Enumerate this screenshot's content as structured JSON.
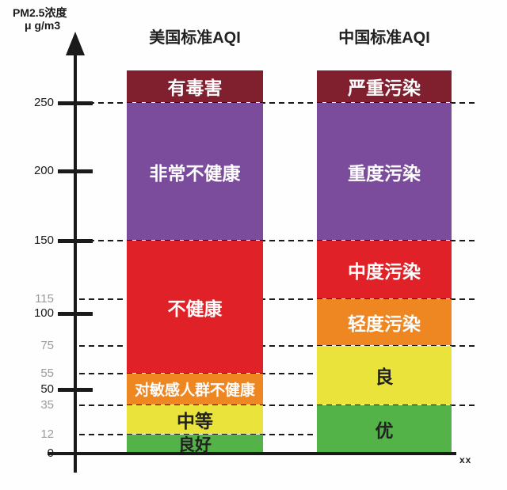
{
  "header": {
    "pm_line1": "PM2.5浓度",
    "pm_line2": "μ g/m3"
  },
  "x_label": "xx",
  "colors": {
    "maroon": "#801f2e",
    "purple": "#7b4b9c",
    "red": "#e02127",
    "orange": "#ee8722",
    "yellow": "#e9e33c",
    "green": "#53b348",
    "axis": "#1a1a1a",
    "gray_label": "#9b9b9b",
    "text_light": "#fdfdfd",
    "text_dark": "#222222"
  },
  "chart_data": {
    "type": "bar",
    "subtype": "stacked-threshold-comparison",
    "ylabel": "PM2.5浓度 μ g/m3",
    "ylim": [
      0,
      275
    ],
    "grid": "dashed threshold lines at 12, 35, 55, 75, 115, 150, 250",
    "legend_position": "none",
    "yticks": [
      {
        "value": 250,
        "tick": true,
        "dashed": true
      },
      {
        "value": 200,
        "tick": true,
        "dashed": false
      },
      {
        "value": 150,
        "tick": true,
        "dashed": true
      },
      {
        "value": 115,
        "tick": false,
        "dashed": true
      },
      {
        "value": 100,
        "tick": true,
        "dashed": false
      },
      {
        "value": 75,
        "tick": false,
        "dashed": true
      },
      {
        "value": 55,
        "tick": false,
        "dashed": true
      },
      {
        "value": 50,
        "tick": true,
        "dashed": false
      },
      {
        "value": 35,
        "tick": false,
        "dashed": true
      },
      {
        "value": 12,
        "tick": false,
        "dashed": true
      },
      {
        "value": 0,
        "tick": false,
        "dashed": false
      }
    ],
    "series": [
      {
        "id": "us",
        "name": "美国标准AQI",
        "segments": [
          {
            "label": "良好",
            "from": 0,
            "to": 12,
            "color": "green",
            "text": "dark"
          },
          {
            "label": "中等",
            "from": 12,
            "to": 35,
            "color": "yellow",
            "text": "dark"
          },
          {
            "label": "对敏感人群不健康",
            "from": 35,
            "to": 55,
            "color": "orange",
            "text": "light"
          },
          {
            "label": "不健康",
            "from": 55,
            "to": 150,
            "color": "red",
            "text": "light"
          },
          {
            "label": "非常不健康",
            "from": 150,
            "to": 250,
            "color": "purple",
            "text": "light"
          },
          {
            "label": "有毒害",
            "from": 250,
            "to": null,
            "color": "maroon",
            "text": "light"
          }
        ]
      },
      {
        "id": "china",
        "name": "中国标准AQI",
        "segments": [
          {
            "label": "优",
            "from": 0,
            "to": 35,
            "color": "green",
            "text": "dark"
          },
          {
            "label": "良",
            "from": 35,
            "to": 75,
            "color": "yellow",
            "text": "dark"
          },
          {
            "label": "轻度污染",
            "from": 75,
            "to": 115,
            "color": "orange",
            "text": "light"
          },
          {
            "label": "中度污染",
            "from": 115,
            "to": 150,
            "color": "red",
            "text": "light"
          },
          {
            "label": "重度污染",
            "from": 150,
            "to": 250,
            "color": "purple",
            "text": "light"
          },
          {
            "label": "严重污染",
            "from": 250,
            "to": null,
            "color": "maroon",
            "text": "light"
          }
        ]
      }
    ]
  }
}
